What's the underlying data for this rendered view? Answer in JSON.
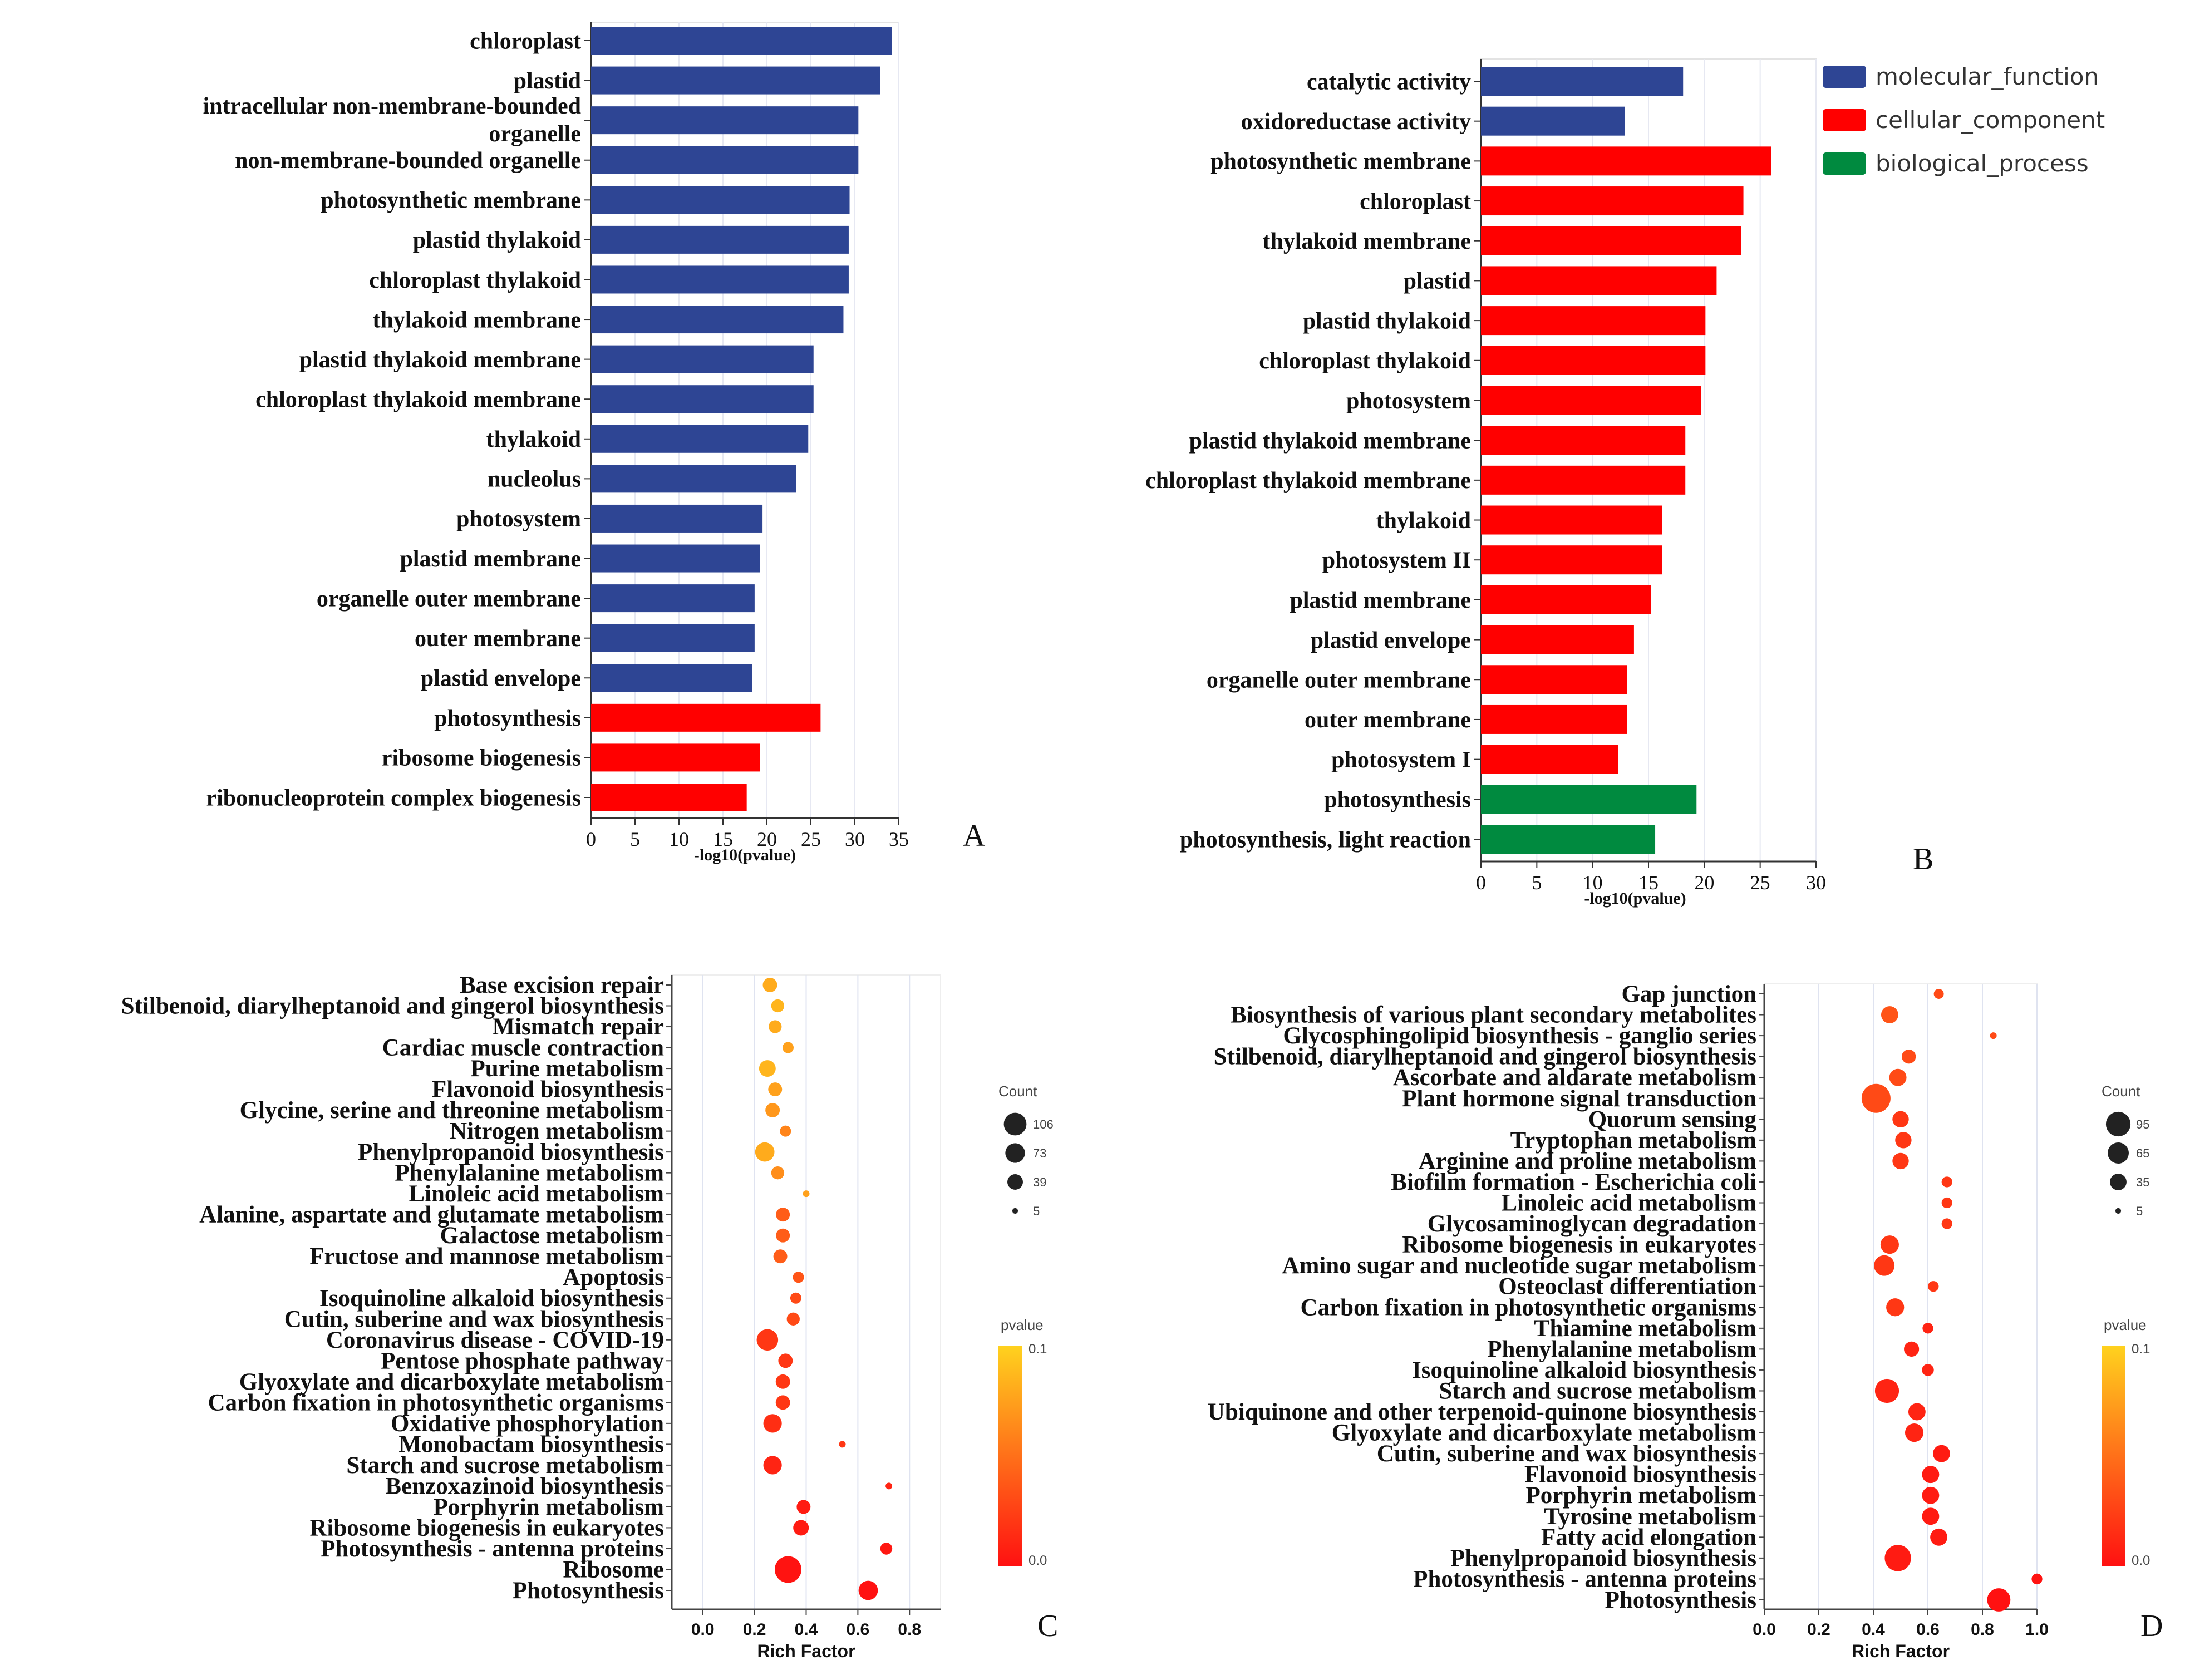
{
  "colors": {
    "molecular_function": "#2e4594",
    "cellular_component": "#ff0000",
    "biological_process": "#008a3f",
    "pvalue_low": "#ff1111",
    "pvalue_high": "#ffd21e"
  },
  "chart_data": [
    {
      "panel": "A",
      "type": "bar",
      "orientation": "horizontal",
      "xlabel": "-log10(pvalue)",
      "xlim": [
        0,
        35
      ],
      "xticks": [
        "0",
        "5",
        "10",
        "15",
        "20",
        "25",
        "30",
        "35"
      ],
      "categories": [
        "chloroplast",
        "plastid",
        "intracellular non-membrane-bounded organelle",
        "non-membrane-bounded organelle",
        "photosynthetic membrane",
        "plastid thylakoid",
        "chloroplast thylakoid",
        "thylakoid membrane",
        "plastid thylakoid membrane",
        "chloroplast thylakoid membrane",
        "thylakoid",
        "nucleolus",
        "photosystem",
        "plastid membrane",
        "organelle outer membrane",
        "outer membrane",
        "plastid envelope",
        "photosynthesis",
        "ribosome biogenesis",
        "ribonucleoprotein complex biogenesis"
      ],
      "values": [
        34.2,
        32.9,
        30.4,
        30.4,
        29.4,
        29.3,
        29.3,
        28.7,
        25.3,
        25.3,
        24.7,
        23.3,
        19.5,
        19.2,
        18.6,
        18.6,
        18.3,
        26.1,
        19.2,
        17.7
      ],
      "groups": [
        "cellular_component",
        "cellular_component",
        "cellular_component",
        "cellular_component",
        "cellular_component",
        "cellular_component",
        "cellular_component",
        "cellular_component",
        "cellular_component",
        "cellular_component",
        "cellular_component",
        "cellular_component",
        "cellular_component",
        "cellular_component",
        "cellular_component",
        "cellular_component",
        "cellular_component",
        "biological_process",
        "biological_process",
        "biological_process"
      ],
      "bar_colors": [
        "#2e4594",
        "#2e4594",
        "#2e4594",
        "#2e4594",
        "#2e4594",
        "#2e4594",
        "#2e4594",
        "#2e4594",
        "#2e4594",
        "#2e4594",
        "#2e4594",
        "#2e4594",
        "#2e4594",
        "#2e4594",
        "#2e4594",
        "#2e4594",
        "#2e4594",
        "#ff0000",
        "#ff0000",
        "#ff0000"
      ]
    },
    {
      "panel": "B",
      "type": "bar",
      "orientation": "horizontal",
      "xlabel": "-log10(pvalue)",
      "xlim": [
        0,
        30
      ],
      "xticks": [
        "0",
        "5",
        "10",
        "15",
        "20",
        "25",
        "30"
      ],
      "categories": [
        "catalytic activity",
        "oxidoreductase activity",
        "photosynthetic membrane",
        "chloroplast",
        "thylakoid membrane",
        "plastid",
        "plastid thylakoid",
        "chloroplast thylakoid",
        "photosystem",
        "plastid thylakoid membrane",
        "chloroplast thylakoid membrane",
        "thylakoid",
        "photosystem II",
        "plastid membrane",
        "plastid envelope",
        "organelle outer membrane",
        "outer membrane",
        "photosystem I",
        "photosynthesis",
        "photosynthesis, light reaction"
      ],
      "values": [
        18.1,
        12.9,
        26.0,
        23.5,
        23.3,
        21.1,
        20.1,
        20.1,
        19.7,
        18.3,
        18.3,
        16.2,
        16.2,
        15.2,
        13.7,
        13.1,
        13.1,
        12.3,
        19.3,
        15.6
      ],
      "groups": [
        "molecular_function",
        "molecular_function",
        "cellular_component",
        "cellular_component",
        "cellular_component",
        "cellular_component",
        "cellular_component",
        "cellular_component",
        "cellular_component",
        "cellular_component",
        "cellular_component",
        "cellular_component",
        "cellular_component",
        "cellular_component",
        "cellular_component",
        "cellular_component",
        "cellular_component",
        "cellular_component",
        "biological_process",
        "biological_process"
      ],
      "legend": [
        "molecular_function",
        "cellular_component",
        "biological_process"
      ],
      "legend_position": "top-right"
    },
    {
      "panel": "C",
      "type": "scatter",
      "xlabel": "Rich Factor",
      "xlim": [
        -0.12,
        0.92
      ],
      "xticks": [
        0.0,
        0.2,
        0.4,
        0.6,
        0.8
      ],
      "xtick_labels": [
        "0.0",
        "0.2",
        "0.4",
        "0.6",
        "0.8"
      ],
      "categories": [
        "Base excision repair",
        "Stilbenoid, diarylheptanoid and gingerol biosynthesis",
        "Mismatch repair",
        "Cardiac muscle contraction",
        "Purine metabolism",
        "Flavonoid biosynthesis",
        "Glycine, serine and threonine metabolism",
        "Nitrogen metabolism",
        "Phenylpropanoid biosynthesis",
        "Phenylalanine metabolism",
        "Linoleic acid metabolism",
        "Alanine, aspartate and glutamate metabolism",
        "Galactose metabolism",
        "Fructose and mannose metabolism",
        "Apoptosis",
        "Isoquinoline alkaloid biosynthesis",
        "Cutin, suberine and wax biosynthesis",
        "Coronavirus disease - COVID-19",
        "Pentose phosphate pathway",
        "Glyoxylate and dicarboxylate metabolism",
        "Carbon fixation in photosynthetic organisms",
        "Oxidative phosphorylation",
        "Monobactam biosynthesis",
        "Starch and sucrose metabolism",
        "Benzoxazinoid biosynthesis",
        "Porphyrin metabolism",
        "Ribosome biogenesis in eukaryotes",
        "Photosynthesis - antenna proteins",
        "Ribosome",
        "Photosynthesis"
      ],
      "rich_factor": [
        0.26,
        0.29,
        0.28,
        0.33,
        0.25,
        0.28,
        0.27,
        0.32,
        0.24,
        0.29,
        0.4,
        0.31,
        0.31,
        0.3,
        0.37,
        0.36,
        0.35,
        0.25,
        0.32,
        0.31,
        0.31,
        0.27,
        0.54,
        0.27,
        0.72,
        0.39,
        0.38,
        0.71,
        0.33,
        0.64
      ],
      "count": [
        20,
        15,
        15,
        10,
        30,
        18,
        20,
        10,
        45,
        15,
        5,
        18,
        18,
        18,
        10,
        10,
        15,
        60,
        20,
        20,
        20,
        40,
        5,
        40,
        5,
        18,
        25,
        12,
        106,
        45
      ],
      "pvalue": [
        0.08,
        0.085,
        0.08,
        0.075,
        0.085,
        0.075,
        0.07,
        0.06,
        0.08,
        0.065,
        0.075,
        0.04,
        0.04,
        0.04,
        0.035,
        0.03,
        0.03,
        0.02,
        0.02,
        0.02,
        0.02,
        0.015,
        0.02,
        0.01,
        0.01,
        0.005,
        0.005,
        0.003,
        0.001,
        0.0
      ],
      "size_legend": {
        "title": "Count",
        "values": [
          106,
          73,
          39,
          5
        ]
      },
      "color_legend": {
        "title": "pvalue",
        "min": 0.0,
        "max": 0.1,
        "min_label": "0.0",
        "max_label": "0.1"
      }
    },
    {
      "panel": "D",
      "type": "scatter",
      "xlabel": "Rich Factor",
      "xlim": [
        0.0,
        1.0
      ],
      "xticks": [
        0.0,
        0.2,
        0.4,
        0.6,
        0.8,
        1.0
      ],
      "xtick_labels": [
        "0.0",
        "0.2",
        "0.4",
        "0.6",
        "0.8",
        "1.0"
      ],
      "categories": [
        "Gap junction",
        "Biosynthesis of various plant secondary metabolites",
        "Glycosphingolipid biosynthesis - ganglio series",
        "Stilbenoid, diarylheptanoid and gingerol biosynthesis",
        "Ascorbate and aldarate metabolism",
        "Plant hormone signal transduction",
        "Quorum sensing",
        "Tryptophan metabolism",
        "Arginine and proline metabolism",
        "Biofilm formation - Escherichia coli",
        "Linoleic acid metabolism",
        "Glycosaminoglycan degradation",
        "Ribosome biogenesis in eukaryotes",
        "Amino sugar and nucleotide sugar metabolism",
        "Osteoclast differentiation",
        "Carbon fixation in photosynthetic organisms",
        "Thiamine metabolism",
        "Phenylalanine metabolism",
        "Isoquinoline alkaloid biosynthesis",
        "Starch and sucrose metabolism",
        "Ubiquinone and other terpenoid-quinone biosynthesis",
        "Glyoxylate and dicarboxylate metabolism",
        "Cutin, suberine and wax biosynthesis",
        "Flavonoid biosynthesis",
        "Porphyrin metabolism",
        "Tyrosine metabolism",
        "Fatty acid elongation",
        "Phenylpropanoid biosynthesis",
        "Photosynthesis - antenna proteins",
        "Photosynthesis"
      ],
      "rich_factor": [
        0.64,
        0.46,
        0.84,
        0.53,
        0.49,
        0.41,
        0.5,
        0.51,
        0.5,
        0.67,
        0.67,
        0.67,
        0.46,
        0.44,
        0.62,
        0.48,
        0.6,
        0.54,
        0.6,
        0.45,
        0.56,
        0.55,
        0.65,
        0.61,
        0.61,
        0.61,
        0.64,
        0.49,
        1.0,
        0.86
      ],
      "count": [
        7,
        25,
        5,
        15,
        25,
        95,
        22,
        22,
        22,
        8,
        8,
        8,
        30,
        40,
        8,
        28,
        8,
        18,
        10,
        60,
        25,
        30,
        25,
        25,
        25,
        25,
        25,
        75,
        8,
        55
      ],
      "pvalue": [
        0.03,
        0.035,
        0.03,
        0.03,
        0.03,
        0.03,
        0.02,
        0.02,
        0.02,
        0.02,
        0.02,
        0.02,
        0.02,
        0.02,
        0.02,
        0.02,
        0.01,
        0.01,
        0.01,
        0.01,
        0.01,
        0.01,
        0.005,
        0.005,
        0.005,
        0.005,
        0.005,
        0.005,
        0.001,
        0.0
      ],
      "size_legend": {
        "title": "Count",
        "values": [
          95,
          65,
          35,
          5
        ]
      },
      "color_legend": {
        "title": "pvalue",
        "min": 0.0,
        "max": 0.1,
        "min_label": "0.0",
        "max_label": "0.1"
      }
    }
  ],
  "panel_labels": {
    "a": "A",
    "b": "B",
    "c": "C",
    "d": "D"
  }
}
